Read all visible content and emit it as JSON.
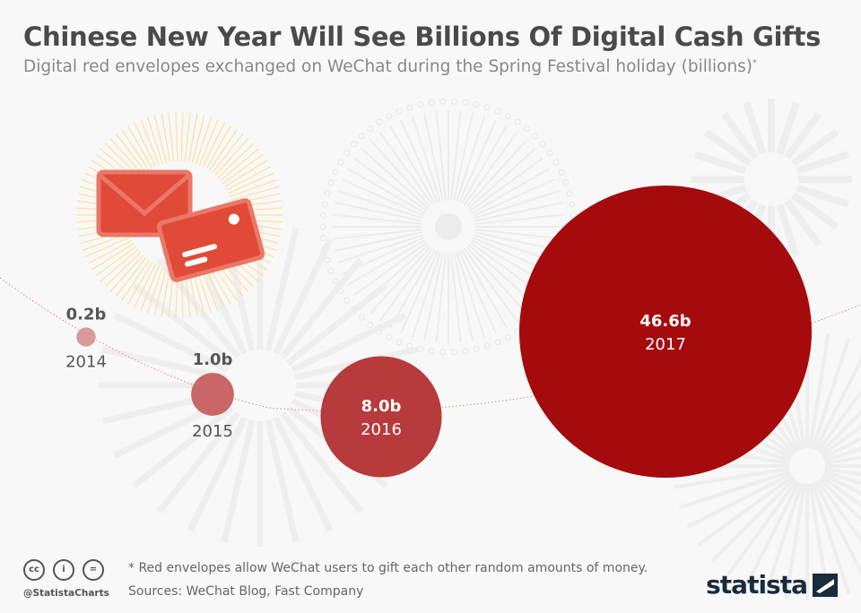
{
  "title": "Chinese New Year Will See Billions Of Digital Cash Gifts",
  "subtitle": "Digital red envelopes exchanged on WeChat during the Spring Festival holiday (billions)",
  "subtitle_mark": "*",
  "chart_data": {
    "type": "bubble",
    "title": "Chinese New Year Will See Billions Of Digital Cash Gifts",
    "categories": [
      "2014",
      "2015",
      "2016",
      "2017"
    ],
    "values": [
      0.2,
      1.0,
      8.0,
      46.6
    ],
    "value_labels": [
      "0.2b",
      "1.0b",
      "8.0b",
      "46.6b"
    ],
    "unit": "billions",
    "colors": [
      "#d99a9c",
      "#c96668",
      "#b73a3c",
      "#a50b0d"
    ]
  },
  "footer": {
    "note": "* Red envelopes allow WeChat users to gift each other random amounts of money.",
    "sources": "Sources: WeChat Blog, Fast Company",
    "handle": "@StatistaCharts",
    "license_icons": [
      "cc-icon",
      "attribution-icon",
      "no-derivatives-icon"
    ],
    "brand": "statista"
  }
}
